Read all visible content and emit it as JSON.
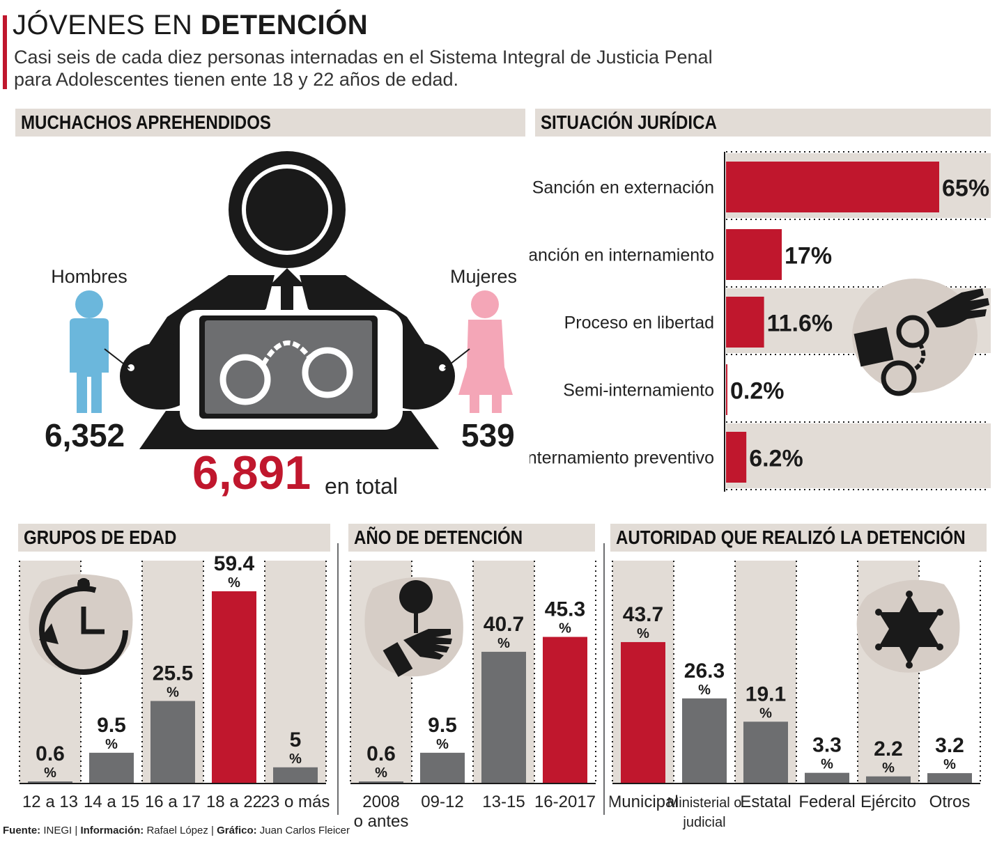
{
  "title": {
    "light": "JÓVENES EN",
    "bold": "DETENCIÓN"
  },
  "subtitle": "Casi seis de cada diez personas internadas en el Sistema Integral de Justicia Penal para Adolescentes tienen ente 18 y 22 años de edad.",
  "aprehendidos": {
    "header": "MUCHACHOS APREHENDIDOS",
    "hombres_label": "Hombres",
    "hombres_value": "6,352",
    "mujeres_label": "Mujeres",
    "mujeres_value": "539",
    "total_value": "6,891",
    "total_label": "en total"
  },
  "colors": {
    "red": "#c0172d",
    "gray": "#6d6e70",
    "beige": "#e2dcd6",
    "blue": "#6bb7dc",
    "pink": "#f4a6b7",
    "dark": "#1a1a1a"
  },
  "chart_data": [
    {
      "type": "bar",
      "orientation": "horizontal",
      "title": "SITUACIÓN JURÍDICA",
      "categories": [
        "Sanción en externación",
        "Sanción en internamiento",
        "Proceso en libertad",
        "Semi-internamiento",
        "Internamiento preventivo"
      ],
      "values": [
        65,
        17,
        11.6,
        0.2,
        6.2
      ],
      "value_labels": [
        "65%",
        "17%",
        "11.6%",
        "0.2%",
        "6.2%"
      ],
      "xlim": [
        0,
        65
      ],
      "grid": false
    },
    {
      "type": "bar",
      "title": "GRUPOS DE EDAD",
      "categories": [
        "12 a 13",
        "14 a 15",
        "16 a 17",
        "18 a 22",
        "23 o más"
      ],
      "values": [
        0.6,
        9.5,
        25.5,
        59.4,
        5
      ],
      "value_labels": [
        "0.6",
        "9.5",
        "25.5",
        "59.4",
        "5"
      ],
      "highlight": [
        3
      ],
      "unit": "%",
      "ylim": [
        0,
        59.4
      ]
    },
    {
      "type": "bar",
      "title": "AÑO DE DETENCIÓN",
      "categories": [
        "2008 o antes",
        "09-12",
        "13-15",
        "16-2017"
      ],
      "values": [
        0.6,
        9.5,
        40.7,
        45.3
      ],
      "value_labels": [
        "0.6",
        "9.5",
        "40.7",
        "45.3"
      ],
      "highlight": [
        3
      ],
      "unit": "%",
      "ylim": [
        0,
        59.4
      ]
    },
    {
      "type": "bar",
      "title": "AUTORIDAD QUE REALIZÓ LA DETENCIÓN",
      "categories": [
        "Municipal",
        "Ministerial o judicial",
        "Estatal",
        "Federal",
        "Ejército",
        "Otros"
      ],
      "values": [
        43.7,
        26.3,
        19.1,
        3.3,
        2.2,
        3.2
      ],
      "value_labels": [
        "43.7",
        "26.3",
        "19.1",
        "3.3",
        "2.2",
        "3.2"
      ],
      "highlight": [
        0
      ],
      "unit": "%",
      "ylim": [
        0,
        59.4
      ]
    }
  ],
  "footer": {
    "fuente_label": "Fuente:",
    "fuente": "INEGI",
    "info_label": "Información:",
    "info": "Rafael López",
    "grafico_label": "Gráfico:",
    "grafico": "Juan Carlos Fleicer",
    "sep": "|"
  }
}
